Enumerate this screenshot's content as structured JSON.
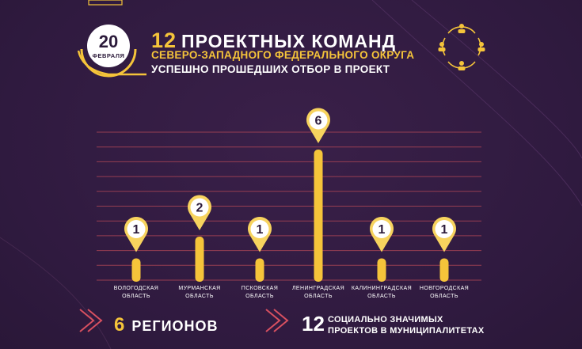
{
  "header": {
    "date_day": "20",
    "date_month": "ФЕВРАЛЯ",
    "title_number": "12",
    "title_text": "ПРОЕКТНЫХ КОМАНД",
    "subtitle_line1": "СЕВЕРО-ЗАПАДНОГО ФЕДЕРАЛЬНОГО ОКРУГА",
    "subtitle_line2": "УСПЕШНО ПРОШЕДШИХ ОТБОР В ПРОЕКТ"
  },
  "chart_data": {
    "type": "bar",
    "categories": [
      [
        "ВОЛОГОДСКАЯ",
        "ОБЛАСТЬ"
      ],
      [
        "МУРМАНСКАЯ",
        "ОБЛАСТЬ"
      ],
      [
        "ПСКОВСКАЯ",
        "ОБЛАСТЬ"
      ],
      [
        "ЛЕНИНГРАДСКАЯ",
        "ОБЛАСТЬ"
      ],
      [
        "КАЛИНИНГРАДСКАЯ",
        "ОБЛАСТЬ"
      ],
      [
        "НОВГОРОДСКАЯ",
        "ОБЛАСТЬ"
      ]
    ],
    "values": [
      1,
      2,
      1,
      6,
      1,
      1
    ],
    "data_labels": [
      "1",
      "2",
      "1",
      "6",
      "1",
      "1"
    ],
    "ylim": [
      0,
      6.8
    ],
    "grid": true
  },
  "footer": {
    "regions_number": "6",
    "regions_text": "РЕГИОНОВ",
    "projects_number": "12",
    "projects_line1": "СОЦИАЛЬНО ЗНАЧИМЫХ",
    "projects_line2": "ПРОЕКТОВ В МУНИЦИПАЛИТЕТАХ"
  },
  "colors": {
    "background": "#331c43",
    "accent": "#f5c43a",
    "bar": "#f5c43a",
    "grid": "#b84a57",
    "text": "#ffffff"
  },
  "icons": [
    "team-cycle-icon",
    "chevron-arrows-icon"
  ]
}
